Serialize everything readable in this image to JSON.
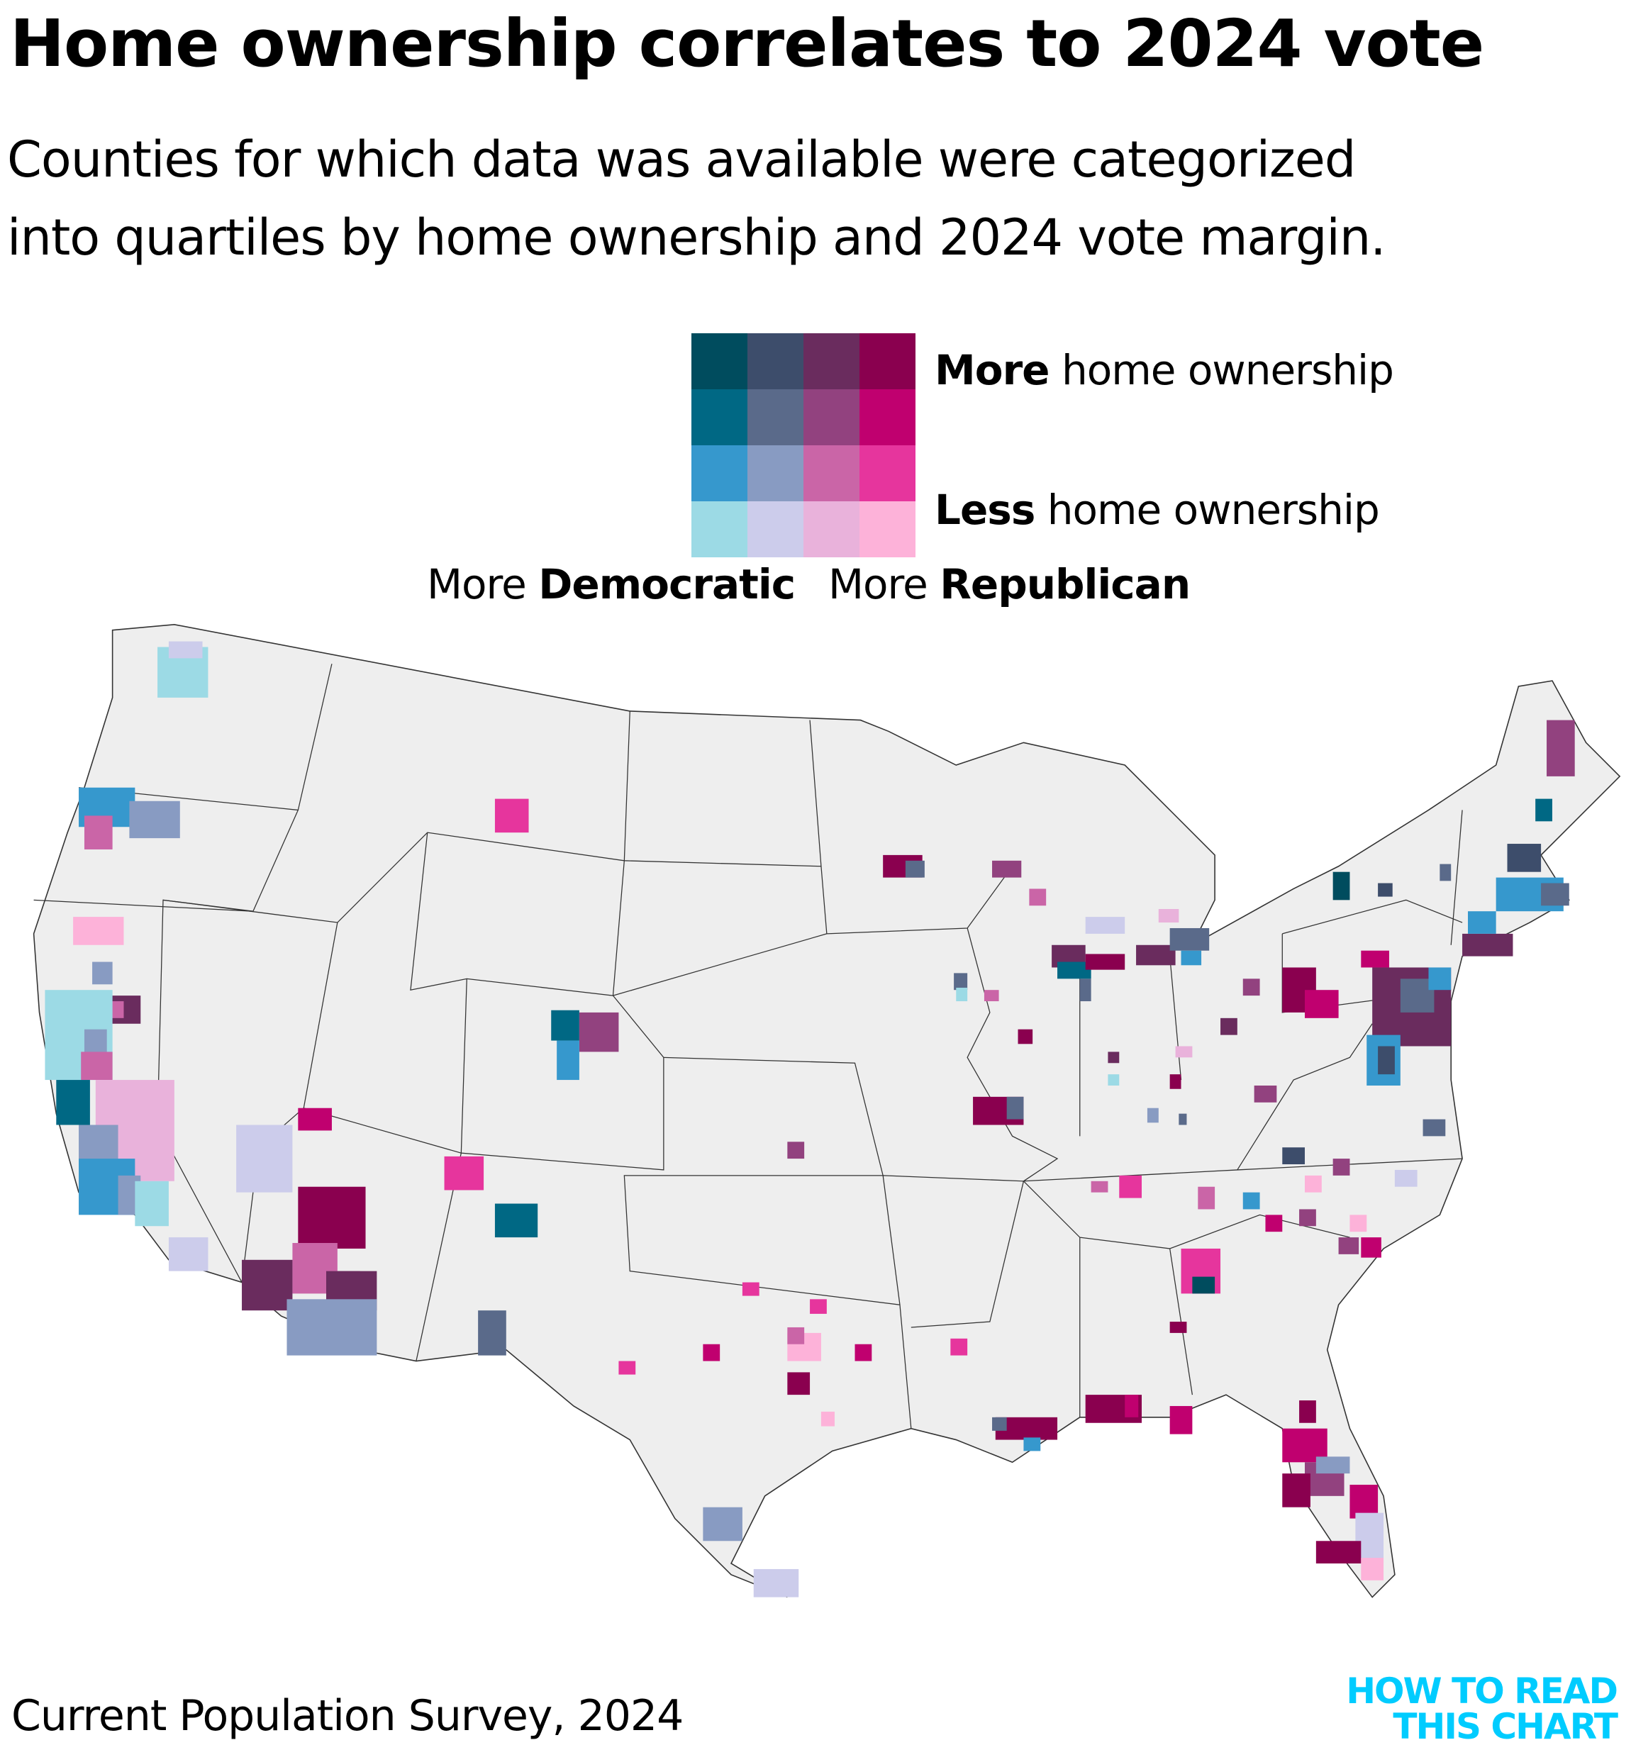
{
  "title": "Home ownership correlates to 2024 vote",
  "subtitle": [
    "Counties for which data was available were categorized",
    "into quartiles by home ownership and 2024 vote margin."
  ],
  "legend": {
    "more_bold": "More",
    "more_rest": " home ownership",
    "less_bold": "Less",
    "less_rest": " home ownership",
    "dem_prefix": "More ",
    "dem_bold": "Democratic",
    "rep_prefix": "More ",
    "rep_bold": "Republican",
    "colors": [
      [
        "#004c5e",
        "#3d4d6b",
        "#6a2c5e",
        "#8a004f"
      ],
      [
        "#006884",
        "#5a6a8a",
        "#92427f",
        "#c0006f"
      ],
      [
        "#3698cd",
        "#889bc2",
        "#ca65a7",
        "#e6359d"
      ],
      [
        "#9cdae5",
        "#cccceb",
        "#e9b2db",
        "#fdb2d9"
      ]
    ]
  },
  "chart_data": {
    "type": "bivariate-choropleth",
    "rows": "home ownership quartile (top = more)",
    "columns": "2024 vote margin quartile (left = more Democratic)",
    "base_color": "#eeeeee"
  },
  "source": "Current Population Survey, 2024",
  "logo": [
    "HOW TO READ",
    "THIS CHART"
  ]
}
